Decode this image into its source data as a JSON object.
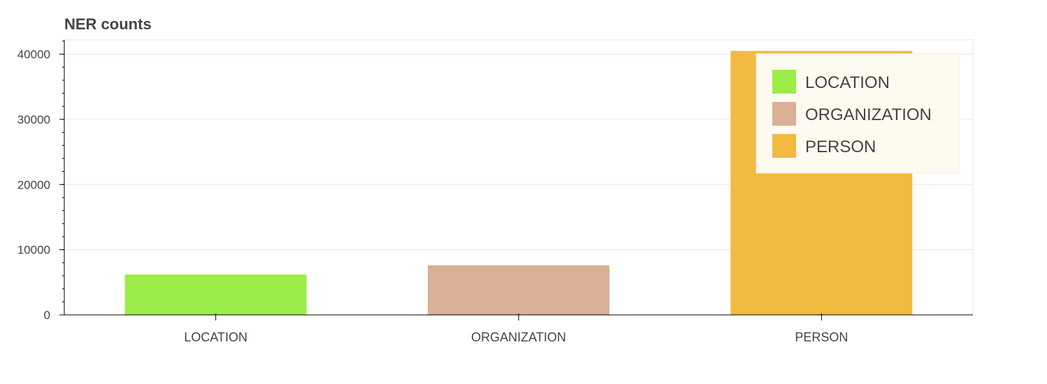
{
  "chart_data": {
    "type": "bar",
    "title": "NER counts",
    "xlabel": "",
    "ylabel": "",
    "categories": [
      "LOCATION",
      "ORGANIZATION",
      "PERSON"
    ],
    "values": [
      6200,
      7600,
      40500
    ],
    "colors": [
      "#9ded48",
      "#d9b096",
      "#f3ba41"
    ],
    "ylim": [
      0,
      42200
    ],
    "y_ticks": [
      0,
      10000,
      20000,
      30000,
      40000
    ],
    "y_minor_step": 2000,
    "grid": true,
    "legend": {
      "placement": "top-right",
      "entries": [
        "LOCATION",
        "ORGANIZATION",
        "PERSON"
      ]
    }
  },
  "theme": {
    "text": "#444444",
    "grid": "#e6e6e6",
    "axis": "#000000",
    "frame": "#e6e6e6",
    "legend_bg": "#fdfaf0",
    "legend_border": "#ececec"
  }
}
